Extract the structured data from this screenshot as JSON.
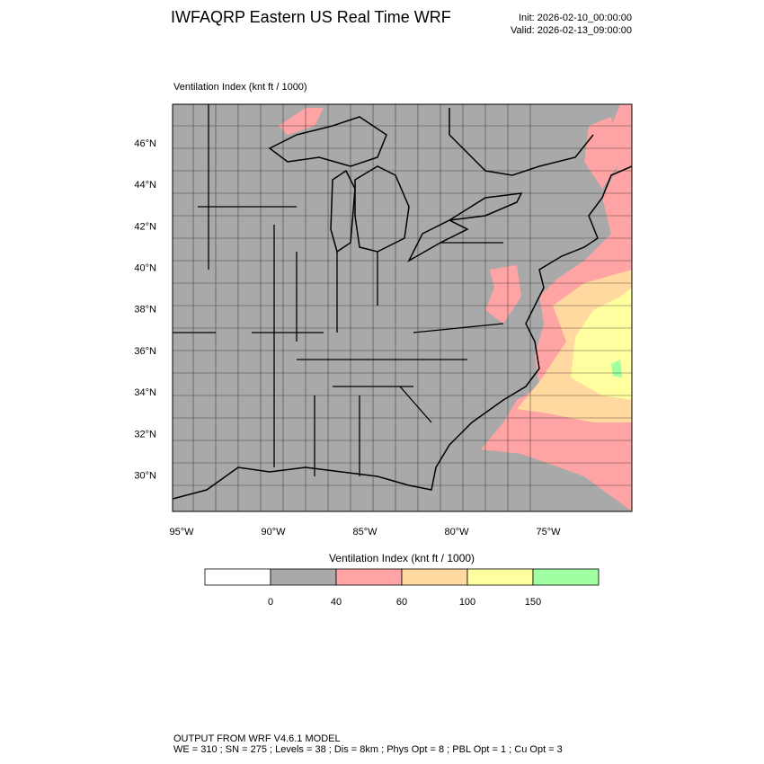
{
  "header": {
    "title": "IWFAQRP Eastern US Real Time WRF",
    "init": "Init: 2026-02-10_00:00:00",
    "valid": "Valid: 2026-02-13_09:00:00"
  },
  "map": {
    "title": "Ventilation Index   (knt ft / 1000)",
    "lat_labels": [
      "46°N",
      "44°N",
      "42°N",
      "40°N",
      "38°N",
      "36°N",
      "34°N",
      "32°N",
      "30°N"
    ],
    "lon_labels": [
      "95°W",
      "90°W",
      "85°W",
      "80°W",
      "75°W"
    ]
  },
  "colorbar": {
    "title": "Ventilation Index  (knt ft / 1000)",
    "colors": [
      "#ffffff",
      "#a9a9a9",
      "#ffa4a4",
      "#ffd9a0",
      "#ffffa0",
      "#a0ffa0"
    ],
    "labels": [
      "0",
      "40",
      "60",
      "100",
      "150"
    ]
  },
  "footer": {
    "line1": "OUTPUT FROM WRF V4.6.1 MODEL",
    "line2": "WE = 310 ; SN = 275 ; Levels = 38 ; Dis = 8km ; Phys Opt = 8 ; PBL Opt = 1 ; Cu Opt = 3"
  }
}
